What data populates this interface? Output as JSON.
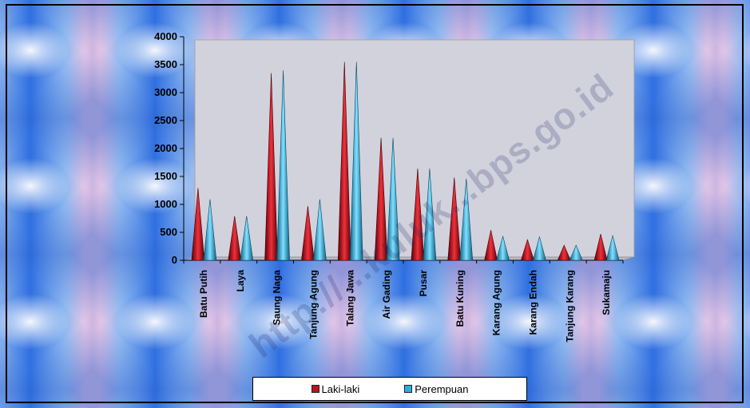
{
  "watermark": "http://...kuluk...bps.go.id",
  "chart_data": {
    "type": "bar",
    "categories": [
      "Batu Putih",
      "Laya",
      "Saung Naga",
      "Tanjung Agung",
      "Talang Jawa",
      "Air Gading",
      "Pusar",
      "Batu Kuning",
      "Karang Agung",
      "Karang Endah",
      "Tanjung Karang",
      "Sukamaju"
    ],
    "series": [
      {
        "name": "Laki-laki",
        "color": "#c0101e",
        "values": [
          1290,
          790,
          3350,
          970,
          3550,
          2190,
          1640,
          1480,
          540,
          370,
          270,
          470
        ]
      },
      {
        "name": "Perempuan",
        "color": "#2aaee0",
        "values": [
          1090,
          790,
          3400,
          1090,
          3550,
          2190,
          1640,
          1460,
          430,
          420,
          270,
          440
        ]
      }
    ],
    "yticks": [
      0,
      500,
      1000,
      1500,
      2000,
      2500,
      3000,
      3500,
      4000
    ],
    "ylim": [
      0,
      4000
    ],
    "legend_position": "bottom",
    "grid": false
  }
}
